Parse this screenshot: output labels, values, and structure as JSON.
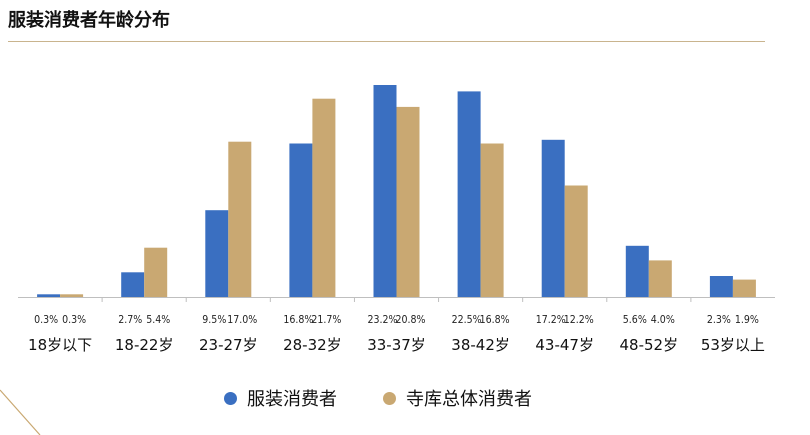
{
  "page": {
    "title": "服装消费者年龄分布"
  },
  "colors": {
    "series1": "#3a6fc1",
    "series2": "#c9a872",
    "axis": "#bfbfbf",
    "rule": "#c9b48e"
  },
  "chart_data": {
    "type": "bar",
    "title": "服装消费者年龄分布",
    "categories": [
      "18岁以下",
      "18-22岁",
      "23-27岁",
      "28-32岁",
      "33-37岁",
      "38-42岁",
      "43-47岁",
      "48-52岁",
      "53岁以上"
    ],
    "series": [
      {
        "name": "服装消费者",
        "values": [
          0.3,
          2.7,
          9.5,
          16.8,
          23.2,
          22.5,
          17.2,
          5.6,
          2.3
        ],
        "labels": [
          "0.3%",
          "2.7%",
          "9.5%",
          "16.8%",
          "23.2%",
          "22.5%",
          "17.2%",
          "5.6%",
          "2.3%"
        ]
      },
      {
        "name": "寺库总体消费者",
        "values": [
          0.3,
          5.4,
          17.0,
          21.7,
          20.8,
          16.8,
          12.2,
          4.0,
          1.9
        ],
        "labels": [
          "0.3%",
          "5.4%",
          "17.0%",
          "21.7%",
          "20.8%",
          "16.8%",
          "12.2%",
          "4.0%",
          "1.9%"
        ]
      }
    ],
    "ylim": [
      0,
      23.2
    ],
    "grid": false,
    "legend_position": "bottom",
    "xlabel": "",
    "ylabel": ""
  }
}
